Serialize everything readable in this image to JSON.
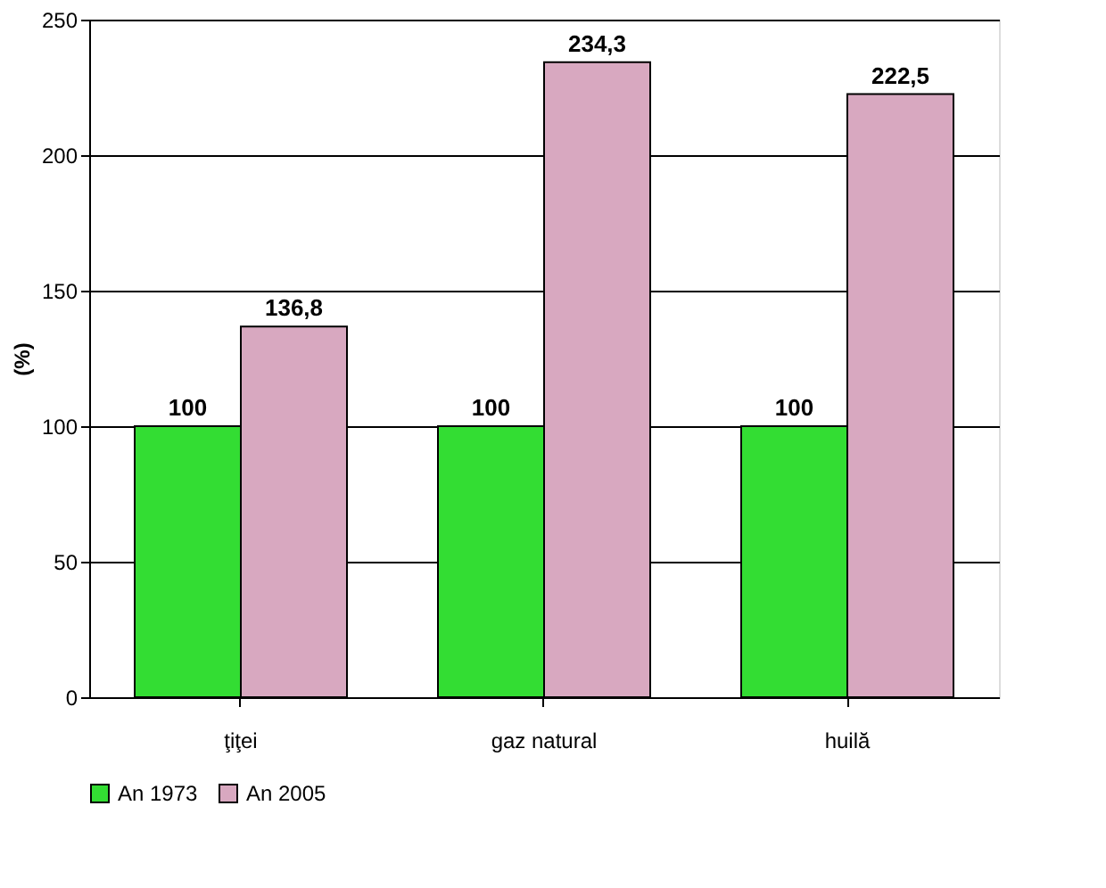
{
  "chart_data": {
    "type": "bar",
    "ylabel": "(%)",
    "categories": [
      "ţiţei",
      "gaz natural",
      "huilă"
    ],
    "series": [
      {
        "name": "An 1973",
        "color": "#33dd33",
        "values": [
          100,
          100,
          100
        ],
        "value_labels": [
          "100",
          "100",
          "100"
        ]
      },
      {
        "name": "An 2005",
        "color": "#d8a8c0",
        "values": [
          136.8,
          234.3,
          222.5
        ],
        "value_labels": [
          "136,8",
          "234,3",
          "222,5"
        ]
      }
    ],
    "ylim": [
      0,
      250
    ],
    "yticks": [
      0,
      50,
      100,
      150,
      200,
      250
    ],
    "grid": "y",
    "legend": "bottom"
  }
}
